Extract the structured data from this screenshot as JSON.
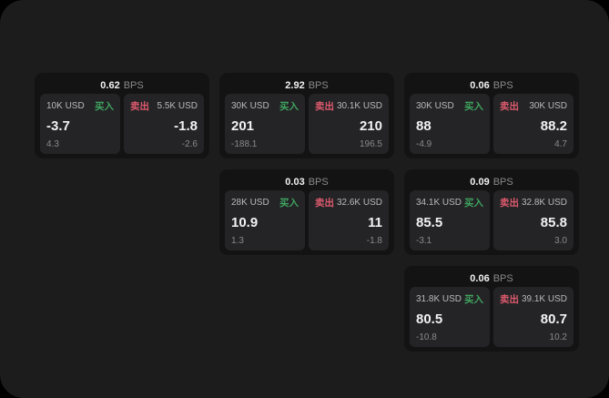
{
  "page": {
    "colors": {
      "background": "#000000",
      "panel": "#1c1c1d",
      "card": "#131314",
      "tile": "#242426",
      "buy": "#3fa45f",
      "sell": "#dd5a6e",
      "text_primary": "#f2f2f2",
      "text_label": "#b9b9b9",
      "text_muted": "#8a8a8a"
    }
  },
  "labels": {
    "bps": "BPS",
    "buy": "买入",
    "sell": "卖出"
  },
  "cards": [
    {
      "row": 1,
      "col": 1,
      "bps": "0.62",
      "buy": {
        "amount": "10K USD",
        "value": "-3.7",
        "sub": "4.3"
      },
      "sell": {
        "amount": "5.5K USD",
        "value": "-1.8",
        "sub": "-2.6"
      }
    },
    {
      "row": 1,
      "col": 2,
      "bps": "2.92",
      "buy": {
        "amount": "30K USD",
        "value": "201",
        "sub": "-188.1"
      },
      "sell": {
        "amount": "30.1K USD",
        "value": "210",
        "sub": "196.5"
      }
    },
    {
      "row": 1,
      "col": 3,
      "bps": "0.06",
      "buy": {
        "amount": "30K USD",
        "value": "88",
        "sub": "-4.9"
      },
      "sell": {
        "amount": "30K USD",
        "value": "88.2",
        "sub": "4.7"
      }
    },
    {
      "row": 2,
      "col": 2,
      "bps": "0.03",
      "buy": {
        "amount": "28K USD",
        "value": "10.9",
        "sub": "1.3"
      },
      "sell": {
        "amount": "32.6K USD",
        "value": "11",
        "sub": "-1.8"
      }
    },
    {
      "row": 2,
      "col": 3,
      "bps": "0.09",
      "buy": {
        "amount": "34.1K USD",
        "value": "85.5",
        "sub": "-3.1"
      },
      "sell": {
        "amount": "32.8K USD",
        "value": "85.8",
        "sub": "3.0"
      }
    },
    {
      "row": 3,
      "col": 3,
      "bps": "0.06",
      "buy": {
        "amount": "31.8K USD",
        "value": "80.5",
        "sub": "-10.8"
      },
      "sell": {
        "amount": "39.1K USD",
        "value": "80.7",
        "sub": "10.2"
      }
    }
  ]
}
